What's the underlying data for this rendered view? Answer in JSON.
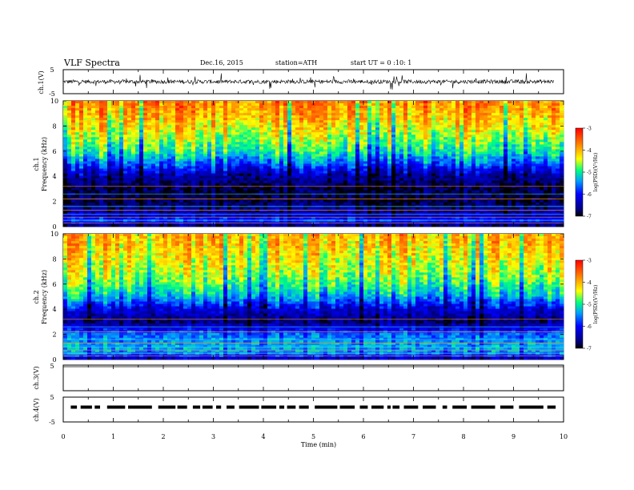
{
  "header": {
    "title": "VLF Spectra",
    "date": "Dec.16, 2015",
    "station": "station=ATH",
    "start": "start  UT =   0 :10: 1"
  },
  "chart_data": [
    {
      "type": "line",
      "panel": "ch1-waveform",
      "ylabel": "ch.1(V)",
      "ylim": [
        -5,
        5
      ],
      "y_ticks": [
        "5",
        "-5"
      ],
      "description_values": {
        "baseline_V": 0,
        "x_range_min": [
          0,
          9.8
        ]
      }
    },
    {
      "type": "heatmap",
      "panel": "ch1-spectrogram",
      "ylabel_channel": "ch.1",
      "ylabel": "Frequency  (kHz)",
      "ylim": [
        0,
        10
      ],
      "y_ticks": [
        "0",
        "2",
        "4",
        "6",
        "8",
        "10"
      ],
      "colorbar": {
        "label": "log(PSD)(V²/Hz)",
        "range": [
          -7,
          -3
        ],
        "ticks": [
          "-3",
          "-4",
          "-5",
          "-6",
          "-7"
        ]
      },
      "profile_kHz_to_logPSD": [
        [
          0,
          -6.8
        ],
        [
          0.5,
          -5.8
        ],
        [
          1,
          -6.4
        ],
        [
          2,
          -6.8
        ],
        [
          3,
          -6.8
        ],
        [
          4,
          -6.5
        ],
        [
          5,
          -5.6
        ],
        [
          6,
          -4.9
        ],
        [
          7,
          -4.5
        ],
        [
          8,
          -4.2
        ],
        [
          9,
          -3.9
        ],
        [
          10,
          -3.7
        ]
      ]
    },
    {
      "type": "heatmap",
      "panel": "ch2-spectrogram",
      "ylabel_channel": "ch.2",
      "ylabel": "Frequency  (kHz)",
      "ylim": [
        0,
        10
      ],
      "y_ticks": [
        "0",
        "2",
        "4",
        "6",
        "8",
        "10"
      ],
      "colorbar": {
        "label": "log(PSD)(V²/Hz)",
        "range": [
          -7,
          -3
        ],
        "ticks": [
          "-3",
          "-4",
          "-5",
          "-6",
          "-7"
        ]
      },
      "profile_kHz_to_logPSD": [
        [
          0,
          -6.5
        ],
        [
          0.5,
          -5.5
        ],
        [
          1,
          -5.3
        ],
        [
          2,
          -5.6
        ],
        [
          3,
          -6.7
        ],
        [
          4,
          -6.2
        ],
        [
          5,
          -5.3
        ],
        [
          6,
          -4.8
        ],
        [
          7,
          -4.5
        ],
        [
          8,
          -4.3
        ],
        [
          9,
          -4.1
        ],
        [
          10,
          -4.0
        ]
      ]
    },
    {
      "type": "line",
      "panel": "ch3-waveform",
      "ylabel": "ch.3(V)",
      "ylim": [
        -5,
        5
      ],
      "y_ticks": [
        "5"
      ]
    },
    {
      "type": "line",
      "panel": "ch4-waveform",
      "ylabel": "ch.4(V)",
      "ylim": [
        -5,
        5
      ],
      "y_ticks": [
        "5",
        "-5"
      ],
      "level_V": 0
    }
  ],
  "xaxis": {
    "label": "Time  (min)",
    "range": [
      0,
      10
    ],
    "ticks": [
      "0",
      "1",
      "2",
      "3",
      "4",
      "5",
      "6",
      "7",
      "8",
      "9",
      "10"
    ]
  },
  "colors": {
    "psd_m7": "#000080",
    "psd_m6": "#0000ff",
    "psd_m55": "#00a0ff",
    "psd_m5": "#00ff80",
    "psd_m45": "#ffff00",
    "psd_m4": "#ff8000",
    "psd_m3": "#ff0000"
  }
}
